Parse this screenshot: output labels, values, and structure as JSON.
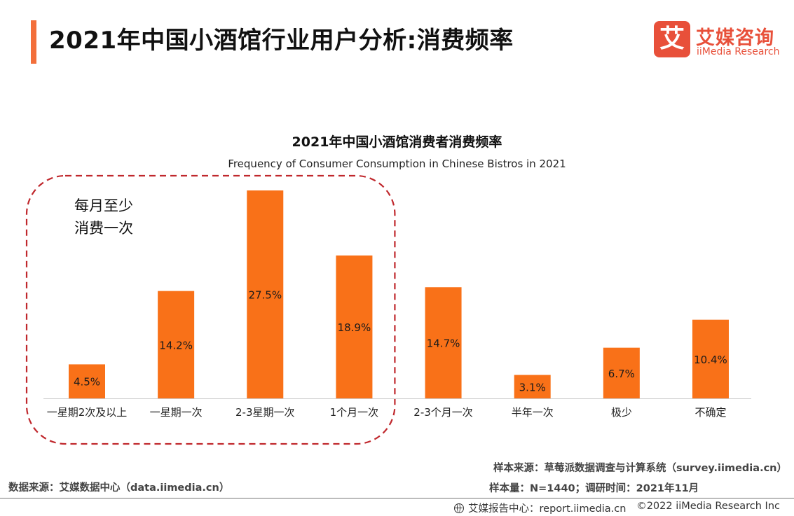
{
  "header": {
    "title": "2021年中国小酒馆行业用户分析:消费频率"
  },
  "logo": {
    "mark": "艾",
    "name_cn": "艾媒咨询",
    "name_en": "iiMedia Research"
  },
  "colors": {
    "bar": "#f97118",
    "accent": "#f36f3b",
    "highlight_border": "#c0282d"
  },
  "chart_data": {
    "type": "bar",
    "title": "2021年中国小酒馆消费者消费频率",
    "subtitle": "Frequency of Consumer Consumption in Chinese Bistros in 2021",
    "categories": [
      "一星期2次及以上",
      "一星期一次",
      "2-3星期一次",
      "1个月一次",
      "2-3个月一次",
      "半年一次",
      "极少",
      "不确定"
    ],
    "values": [
      4.5,
      14.2,
      27.5,
      18.9,
      14.7,
      3.1,
      6.7,
      10.4
    ],
    "value_labels": [
      "4.5%",
      "14.2%",
      "27.5%",
      "18.9%",
      "14.7%",
      "3.1%",
      "6.7%",
      "10.4%"
    ],
    "ylim": [
      0,
      30
    ],
    "unit": "%",
    "grid": false,
    "annotation": {
      "lines": [
        "每月至少",
        "消费一次"
      ],
      "covers": [
        "一星期2次及以上",
        "一星期一次",
        "2-3星期一次",
        "1个月一次"
      ]
    }
  },
  "footer": {
    "sample_source": "样本来源：草莓派数据调查与计算系统（survey.iimedia.cn）",
    "sample_size": "样本量：N=1440；调研时间：2021年11月",
    "data_source": "数据来源：艾媒数据中心（data.iimedia.cn）",
    "report_center": "艾媒报告中心：report.iimedia.cn",
    "copyright": "©2022  iiMedia Research  Inc"
  }
}
